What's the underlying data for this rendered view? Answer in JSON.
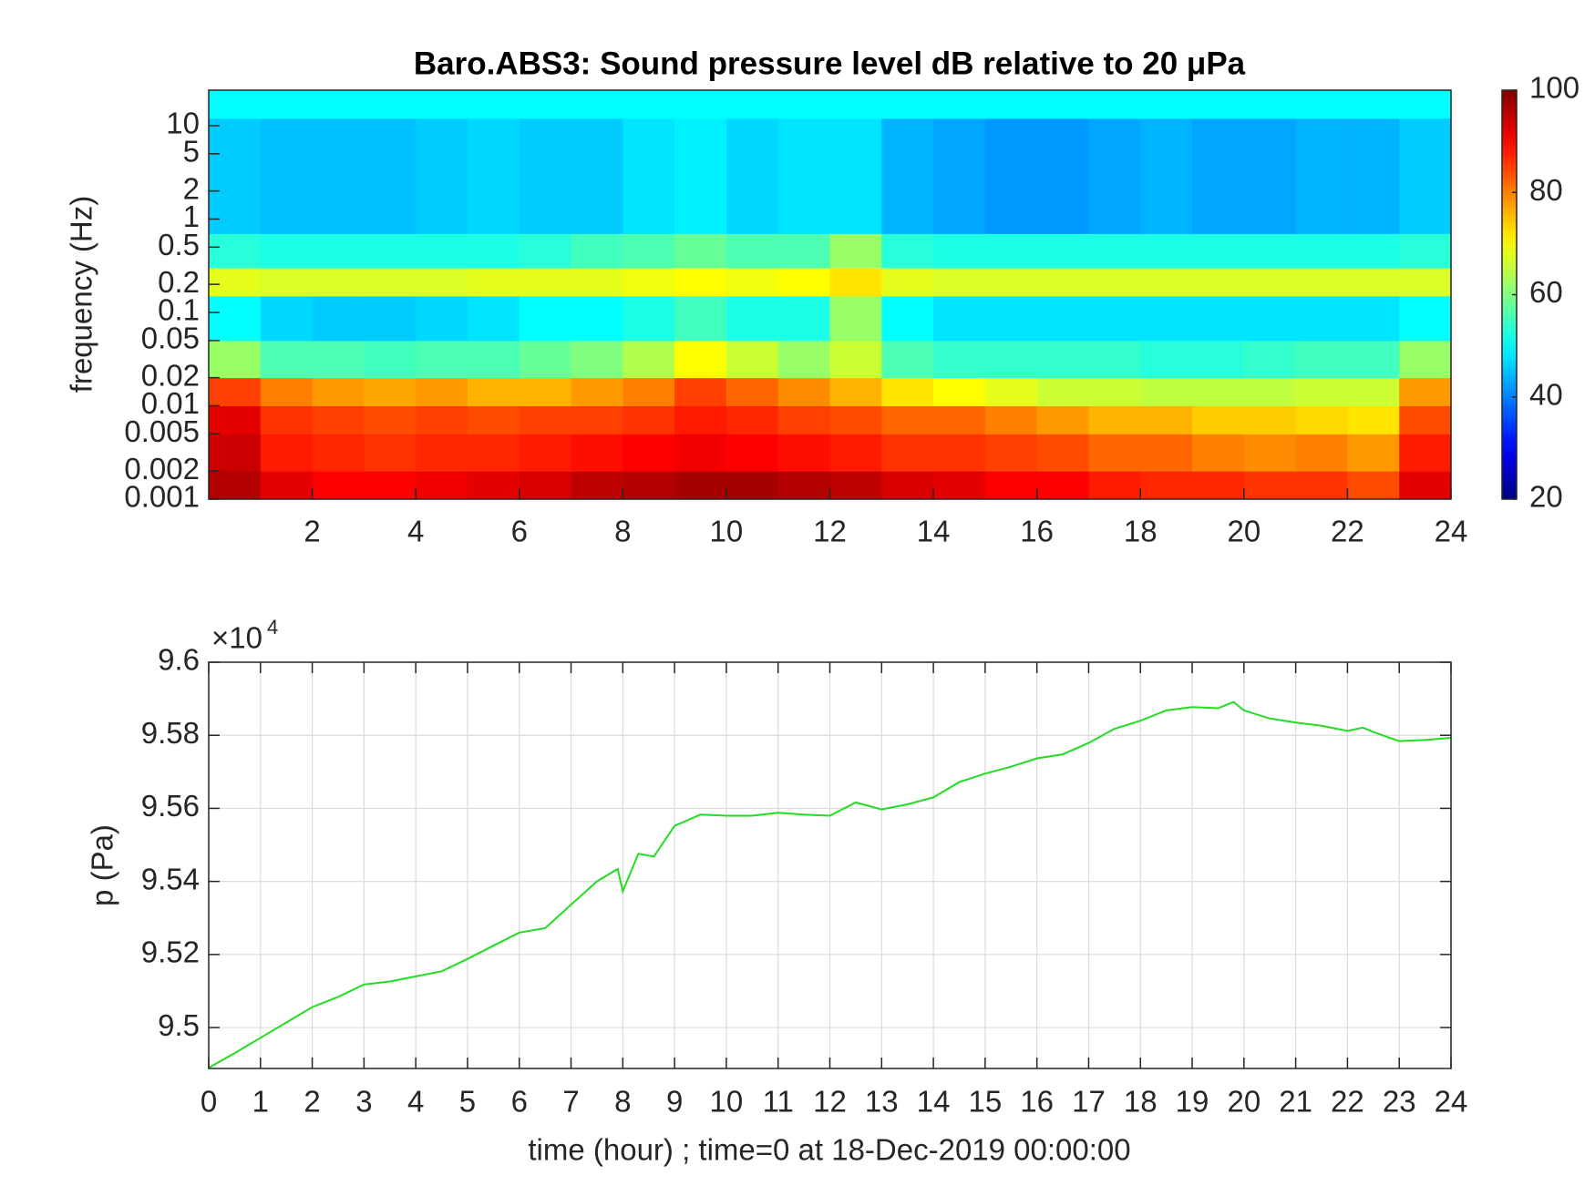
{
  "chart_data": [
    {
      "type": "heatmap",
      "title": "Baro.ABS3: Sound pressure level dB relative to 20 μPa",
      "y_label": "frequency (Hz)",
      "colormap": "jet",
      "x_bins": [
        0,
        1,
        2,
        3,
        4,
        5,
        6,
        7,
        8,
        9,
        10,
        11,
        12,
        13,
        14,
        15,
        16,
        17,
        18,
        19,
        20,
        21,
        22,
        23,
        24
      ],
      "y_bins": [
        0.001,
        0.002,
        0.005,
        0.01,
        0.02,
        0.05,
        0.15,
        0.3,
        0.7,
        12,
        24
      ],
      "z": [
        [
          96,
          92,
          90,
          90,
          91,
          92,
          93,
          95,
          96,
          97,
          97,
          96,
          95,
          93,
          92,
          90,
          90,
          88,
          87,
          87,
          86,
          86,
          84,
          92
        ],
        [
          94,
          88,
          87,
          86,
          87,
          87,
          88,
          89,
          90,
          91,
          90,
          89,
          88,
          86,
          86,
          85,
          84,
          82,
          82,
          80,
          79,
          80,
          78,
          88
        ],
        [
          92,
          86,
          85,
          84,
          85,
          84,
          85,
          85,
          86,
          88,
          87,
          85,
          84,
          82,
          82,
          80,
          78,
          76,
          76,
          74,
          74,
          73,
          72,
          84
        ],
        [
          85,
          80,
          78,
          77,
          78,
          76,
          76,
          78,
          80,
          85,
          82,
          79,
          76,
          72,
          70,
          68,
          66,
          66,
          65,
          65,
          65,
          66,
          66,
          78
        ],
        [
          62,
          56,
          56,
          55,
          56,
          56,
          58,
          60,
          64,
          70,
          66,
          62,
          66,
          56,
          54,
          54,
          54,
          54,
          53,
          53,
          54,
          55,
          55,
          62
        ],
        [
          50,
          47,
          46,
          46,
          47,
          48,
          50,
          50,
          52,
          55,
          52,
          52,
          62,
          50,
          48,
          48,
          48,
          48,
          48,
          48,
          48,
          48,
          48,
          50
        ],
        [
          68,
          67,
          67,
          67,
          67,
          68,
          68,
          68,
          69,
          70,
          69,
          70,
          72,
          68,
          67,
          67,
          67,
          67,
          67,
          67,
          67,
          67,
          67,
          67
        ],
        [
          53,
          52,
          52,
          52,
          52,
          52,
          53,
          55,
          56,
          58,
          56,
          56,
          62,
          53,
          52,
          52,
          52,
          52,
          52,
          52,
          52,
          52,
          52,
          53
        ],
        [
          46,
          45,
          45,
          45,
          46,
          47,
          46,
          46,
          48,
          49,
          47,
          48,
          48,
          44,
          43,
          42,
          42,
          43,
          44,
          43,
          43,
          44,
          44,
          46
        ],
        [
          50,
          50,
          50,
          50,
          50,
          50,
          50,
          50,
          50,
          50,
          50,
          50,
          50,
          50,
          50,
          50,
          50,
          50,
          50,
          50,
          50,
          50,
          50,
          50
        ]
      ],
      "xlim": [
        0,
        24
      ],
      "xticks": [
        2,
        4,
        6,
        8,
        10,
        12,
        14,
        16,
        18,
        20,
        22,
        24
      ],
      "ylim": [
        0.001,
        24
      ],
      "ylog": true,
      "yticks": [
        0.001,
        0.002,
        0.005,
        0.01,
        0.02,
        0.05,
        0.1,
        0.2,
        0.5,
        1,
        2,
        5,
        10
      ],
      "colorbar": {
        "clim": [
          20,
          100
        ],
        "ticks": [
          20,
          40,
          60,
          80,
          100
        ]
      }
    },
    {
      "type": "line",
      "x_label": "time (hour) ; time=0 at 18-Dec-2019 00:00:00",
      "y_label": "p (Pa)",
      "y_exponent": {
        "base": "×10",
        "power": "4"
      },
      "grid": true,
      "xlim": [
        0,
        24
      ],
      "xticks": [
        0,
        1,
        2,
        3,
        4,
        5,
        6,
        7,
        8,
        9,
        10,
        11,
        12,
        13,
        14,
        15,
        16,
        17,
        18,
        19,
        20,
        21,
        22,
        23,
        24
      ],
      "ylim": [
        94888,
        96000
      ],
      "yticks": [
        {
          "value": 95000,
          "label": "9.5"
        },
        {
          "value": 95200,
          "label": "9.52"
        },
        {
          "value": 95400,
          "label": "9.54"
        },
        {
          "value": 95600,
          "label": "9.56"
        },
        {
          "value": 95800,
          "label": "9.58"
        },
        {
          "value": 96000,
          "label": "9.6"
        }
      ],
      "series": [
        {
          "name": "p",
          "color": "#22dd22",
          "x": [
            0,
            0.5,
            1,
            1.5,
            2,
            2.5,
            3,
            3.5,
            4,
            4.5,
            5,
            5.5,
            6,
            6.5,
            7,
            7.5,
            7.9,
            8,
            8.3,
            8.6,
            9,
            9.5,
            10,
            10.5,
            11,
            11.5,
            12,
            12.5,
            13,
            13.5,
            14,
            14.5,
            15,
            15.5,
            16,
            16.5,
            17,
            17.5,
            18,
            18.5,
            19,
            19.5,
            19.8,
            20,
            20.5,
            21,
            21.5,
            22,
            22.3,
            22.5,
            23,
            23.5,
            24
          ],
          "values": [
            94890,
            94930,
            94972,
            95014,
            95056,
            95084,
            95118,
            95126,
            95140,
            95154,
            95188,
            95224,
            95260,
            95272,
            95336,
            95400,
            95434,
            95373,
            95476,
            95468,
            95552,
            95583,
            95580,
            95580,
            95588,
            95583,
            95580,
            95616,
            95597,
            95611,
            95630,
            95672,
            95695,
            95714,
            95737,
            95748,
            95779,
            95818,
            95840,
            95868,
            95877,
            95874,
            95891,
            95868,
            95846,
            95835,
            95826,
            95812,
            95821,
            95809,
            95784,
            95787,
            95793
          ]
        }
      ]
    }
  ]
}
